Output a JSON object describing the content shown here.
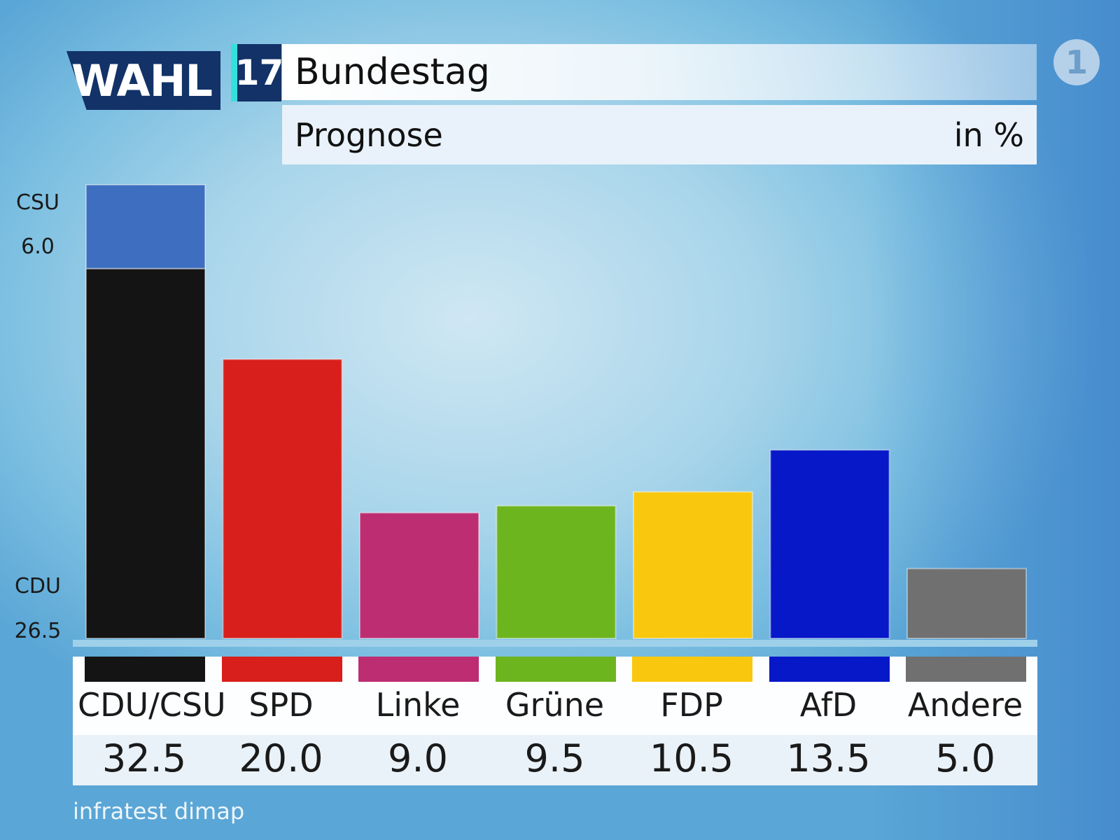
{
  "header": {
    "logo_text": "WAHL",
    "logo_number": "17",
    "title": "Bundestag",
    "subtitle": "Prognose",
    "unit": "in %",
    "broadcaster_logo": "1"
  },
  "source": "infratest dimap",
  "chart_data": {
    "type": "bar",
    "title": "Bundestag",
    "subtitle": "Prognose",
    "unit": "in %",
    "ylim": [
      0,
      32.5
    ],
    "grid": false,
    "categories": [
      "CDU/CSU",
      "SPD",
      "Linke",
      "Grüne",
      "FDP",
      "AfD",
      "Andere"
    ],
    "values": [
      32.5,
      20.0,
      9.0,
      9.5,
      10.5,
      13.5,
      5.0
    ],
    "value_labels": [
      "32.5",
      "20.0",
      "9.0",
      "9.5",
      "10.5",
      "13.5",
      "5.0"
    ],
    "colors": [
      "#141414",
      "#d81f1c",
      "#bd2d72",
      "#6db51f",
      "#f9c80e",
      "#0618c8",
      "#707070"
    ],
    "stack": {
      "category": "CDU/CSU",
      "segments": [
        {
          "name": "CDU",
          "value": 26.5,
          "label": "26.5",
          "color": "#141414"
        },
        {
          "name": "CSU",
          "value": 6.0,
          "label": "6.0",
          "color": "#3e6ebf"
        }
      ]
    }
  }
}
